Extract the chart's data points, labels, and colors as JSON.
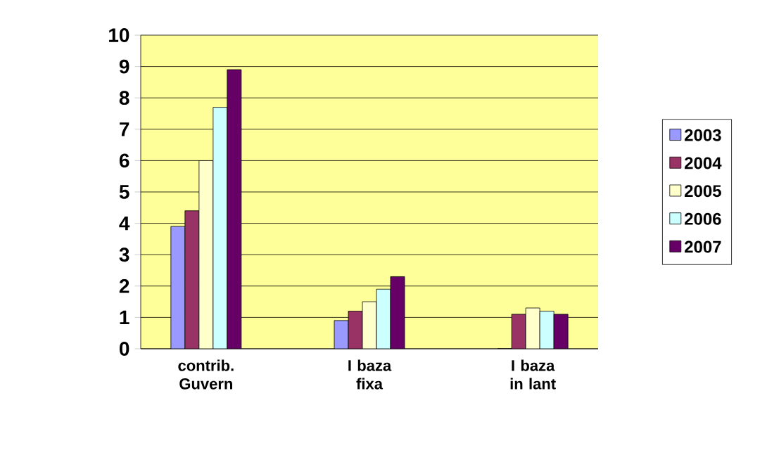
{
  "chart_data": {
    "type": "bar",
    "categories": [
      "contrib. Guvern",
      "I baza fixa",
      "I baza in lant"
    ],
    "series": [
      {
        "name": "2003",
        "color": "#9999ff",
        "values": [
          3.9,
          0.9,
          0
        ]
      },
      {
        "name": "2004",
        "color": "#993366",
        "values": [
          4.4,
          1.2,
          1.1
        ]
      },
      {
        "name": "2005",
        "color": "#ffffcc",
        "values": [
          6.0,
          1.5,
          1.3
        ]
      },
      {
        "name": "2006",
        "color": "#ccffff",
        "values": [
          7.7,
          1.9,
          1.2
        ]
      },
      {
        "name": "2007",
        "color": "#660066",
        "values": [
          8.9,
          2.3,
          1.1
        ]
      }
    ],
    "ylim": [
      0,
      10
    ],
    "yticks": [
      0,
      1,
      2,
      3,
      4,
      5,
      6,
      7,
      8,
      9,
      10
    ],
    "grid": "y",
    "legend": "right"
  }
}
